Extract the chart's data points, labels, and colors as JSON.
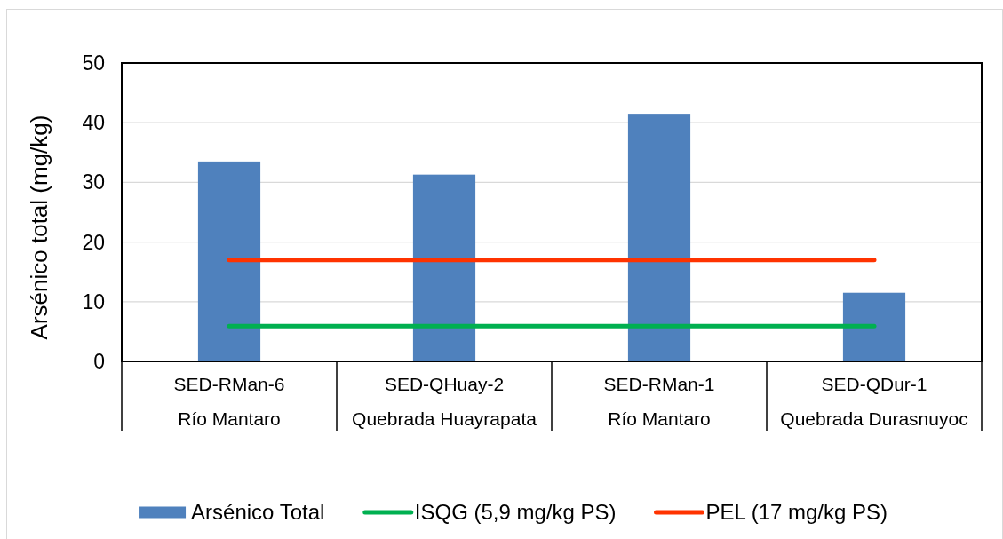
{
  "chart_data": {
    "type": "bar",
    "ylabel": "Arsénico total (mg/kg)",
    "categories": [
      "SED-RMan-6\nRío Mantaro",
      "SED-QHuay-2\nQuebrada Huayrapata",
      "SED-RMan-1\nRío Mantaro",
      "SED-QDur-1\nQuebrada Durasnuyoc"
    ],
    "series": [
      {
        "name": "Arsénico Total",
        "color": "#4f81bd",
        "values": [
          33.5,
          31.3,
          41.5,
          11.5
        ]
      },
      {
        "name": "ISQG (5,9 mg/kg PS)",
        "type": "line",
        "color": "#00b050",
        "values": [
          5.9,
          5.9,
          5.9,
          5.9
        ]
      },
      {
        "name": "PEL (17 mg/kg PS)",
        "type": "line",
        "color": "#ff3300",
        "values": [
          17,
          17,
          17,
          17
        ]
      }
    ],
    "ylim": [
      0,
      50
    ],
    "yticks": [
      0,
      10,
      20,
      30,
      40,
      50
    ],
    "grid": "y",
    "legend": "bottom"
  }
}
